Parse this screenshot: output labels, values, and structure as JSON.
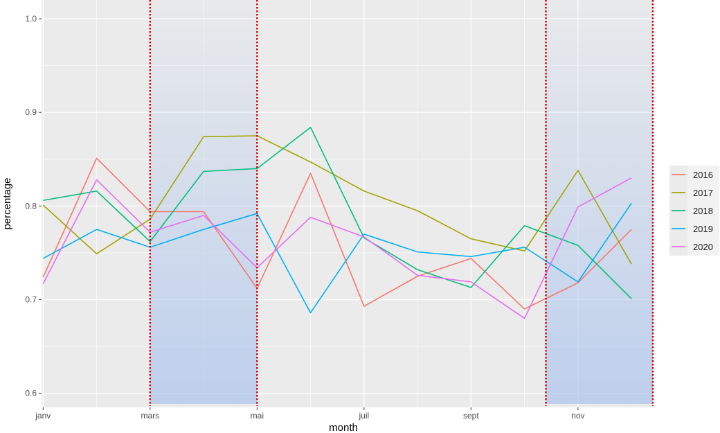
{
  "chart_data": {
    "type": "line",
    "xlabel": "month",
    "ylabel": "percentage",
    "x": [
      1,
      2,
      3,
      4,
      5,
      6,
      7,
      8,
      9,
      10,
      11,
      12
    ],
    "xticks": [
      {
        "x": 1,
        "label": "janv"
      },
      {
        "x": 3,
        "label": "mars"
      },
      {
        "x": 5,
        "label": "mai"
      },
      {
        "x": 7,
        "label": "juil"
      },
      {
        "x": 9,
        "label": "sept"
      },
      {
        "x": 11,
        "label": "nov"
      }
    ],
    "yticks": [
      0.6,
      0.7,
      0.8,
      0.9,
      1.0
    ],
    "ytick_labels": [
      "0.6",
      "0.7",
      "0.8",
      "0.9",
      "1.0"
    ],
    "xlim": [
      0.97,
      12.4
    ],
    "ylim": [
      0.585,
      1.02
    ],
    "grid": true,
    "legend_position": "right",
    "series": [
      {
        "name": "2016",
        "color": "#F8766D",
        "values": [
          0.724,
          0.851,
          0.794,
          0.794,
          0.712,
          0.835,
          0.693,
          0.725,
          0.744,
          0.69,
          0.718,
          0.775
        ]
      },
      {
        "name": "2017",
        "color": "#A3A500",
        "values": [
          0.801,
          0.749,
          0.786,
          0.874,
          0.875,
          0.847,
          0.816,
          0.795,
          0.765,
          0.752,
          0.838,
          0.738
        ]
      },
      {
        "name": "2018",
        "color": "#00BF7D",
        "values": [
          0.806,
          0.816,
          0.762,
          0.837,
          0.84,
          0.884,
          0.766,
          0.732,
          0.713,
          0.779,
          0.758,
          0.701
        ]
      },
      {
        "name": "2019",
        "color": "#00B0F6",
        "values": [
          0.744,
          0.775,
          0.756,
          0.775,
          0.792,
          0.686,
          0.77,
          0.751,
          0.746,
          0.756,
          0.719,
          0.803
        ]
      },
      {
        "name": "2020",
        "color": "#E76BF3",
        "values": [
          0.717,
          0.828,
          0.772,
          0.79,
          0.734,
          0.788,
          0.767,
          0.726,
          0.719,
          0.68,
          0.799,
          0.83
        ]
      }
    ],
    "highlight_regions": [
      {
        "x_start": 3,
        "x_end": 5,
        "color": "#a8c2ec"
      },
      {
        "x_start": 10.4,
        "x_end": 12.4,
        "color": "#a8c2ec"
      }
    ],
    "highlight_line_color": "#d90000"
  }
}
